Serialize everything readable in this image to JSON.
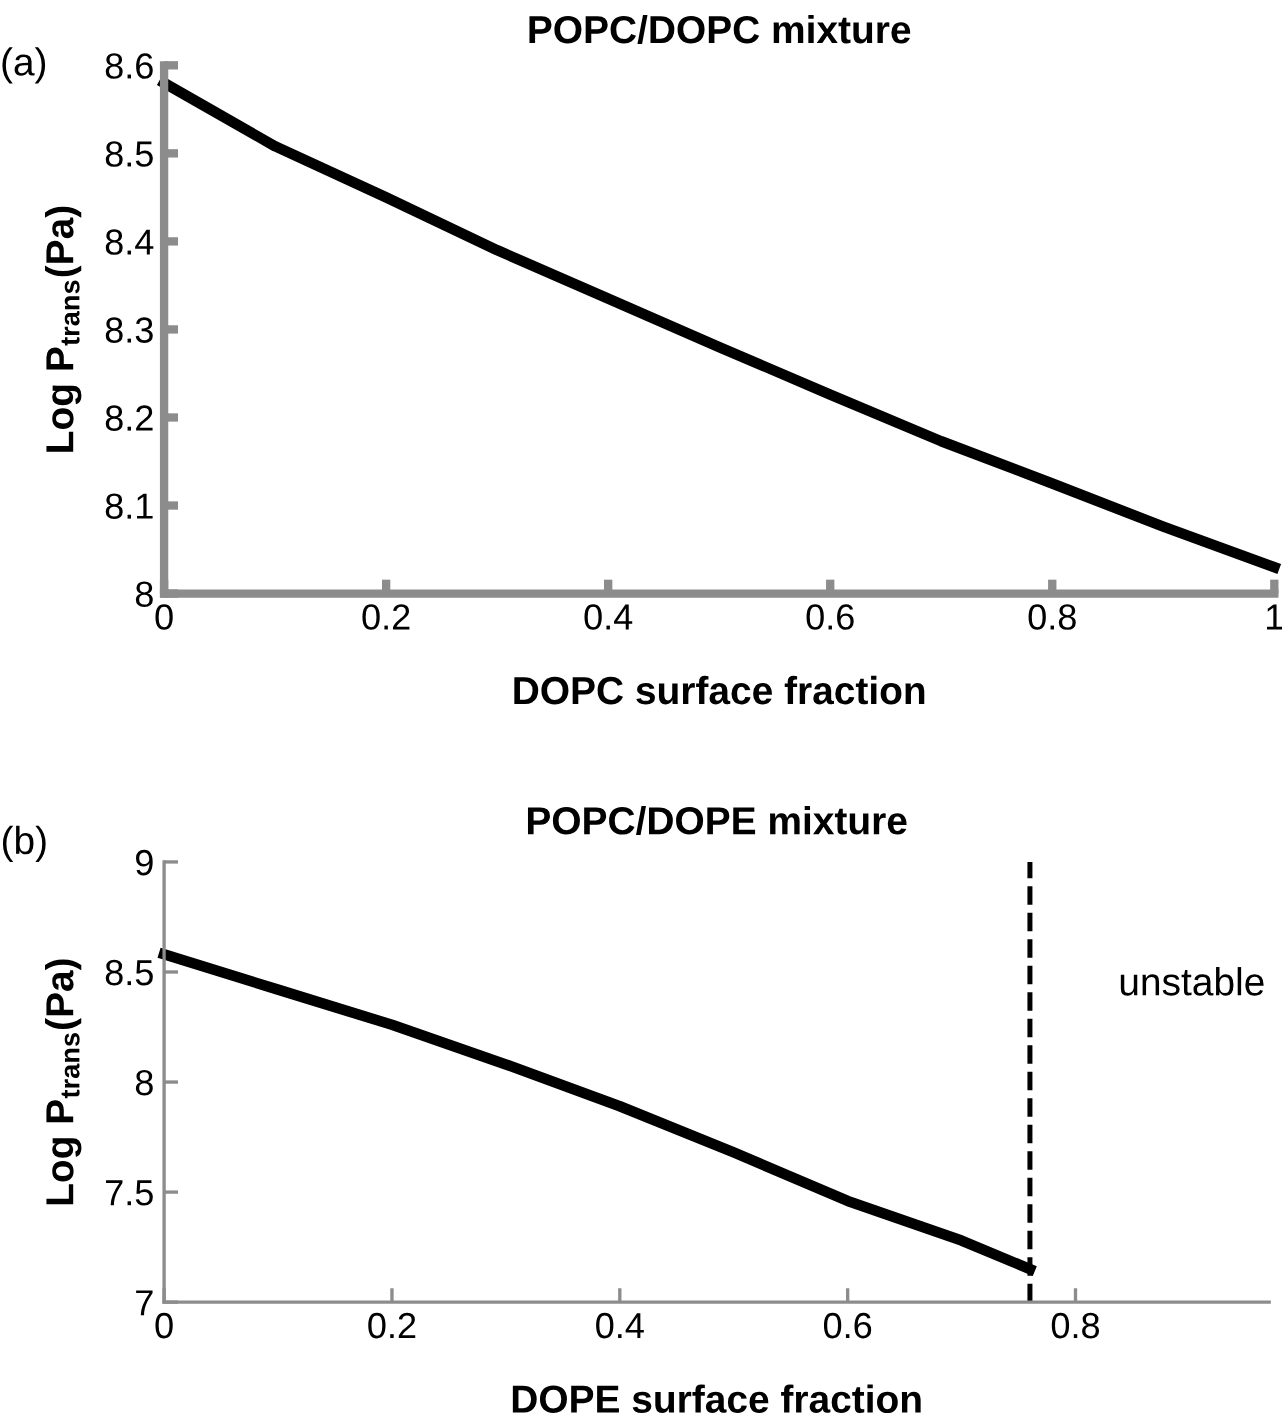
{
  "chart_data": [
    {
      "type": "line",
      "title": "POPC/DOPC mixture",
      "xlabel": "DOPC surface fraction",
      "ylabel": "Log P$_{trans}$(Pa)",
      "annotations": [
        "(a)"
      ],
      "x": [
        0,
        0.1,
        0.2,
        0.3,
        0.4,
        0.5,
        0.6,
        0.7,
        0.8,
        0.9,
        1
      ],
      "series": [
        {
          "color": "#000000",
          "values": [
            8.58,
            8.508,
            8.45,
            8.39,
            8.335,
            8.28,
            8.226,
            8.173,
            8.125,
            8.076,
            8.03
          ]
        }
      ],
      "xlim": [
        0,
        1
      ],
      "ylim": [
        8,
        8.6
      ],
      "xticks": [
        0,
        0.2,
        0.4,
        0.6,
        0.8,
        1
      ],
      "yticks": [
        8,
        8.1,
        8.2,
        8.3,
        8.4,
        8.5,
        8.6
      ],
      "grid": false,
      "line_style": "solid",
      "marker": "none"
    },
    {
      "type": "line",
      "title": "POPC/DOPE mixture",
      "xlabel": "DOPE surface fraction",
      "ylabel": "Log P$_{trans}$(Pa)",
      "annotations": [
        "(b)",
        "unstable"
      ],
      "x": [
        0,
        0.1,
        0.2,
        0.3,
        0.4,
        0.5,
        0.6,
        0.7,
        0.76
      ],
      "series": [
        {
          "color": "#000000",
          "values": [
            8.58,
            8.42,
            8.26,
            8.08,
            7.89,
            7.68,
            7.46,
            7.28,
            7.15
          ]
        }
      ],
      "ref_lines": [
        {
          "axis": "x",
          "value": 0.76,
          "label": null,
          "color": "#000000",
          "line_style": "dashed"
        }
      ],
      "xlim": [
        0,
        0.97
      ],
      "ylim": [
        7,
        9
      ],
      "xticks": [
        0,
        0.2,
        0.4,
        0.6,
        0.8
      ],
      "yticks": [
        7,
        7.5,
        8,
        8.5,
        9
      ],
      "grid": false,
      "line_style": "solid",
      "marker": "none"
    }
  ]
}
